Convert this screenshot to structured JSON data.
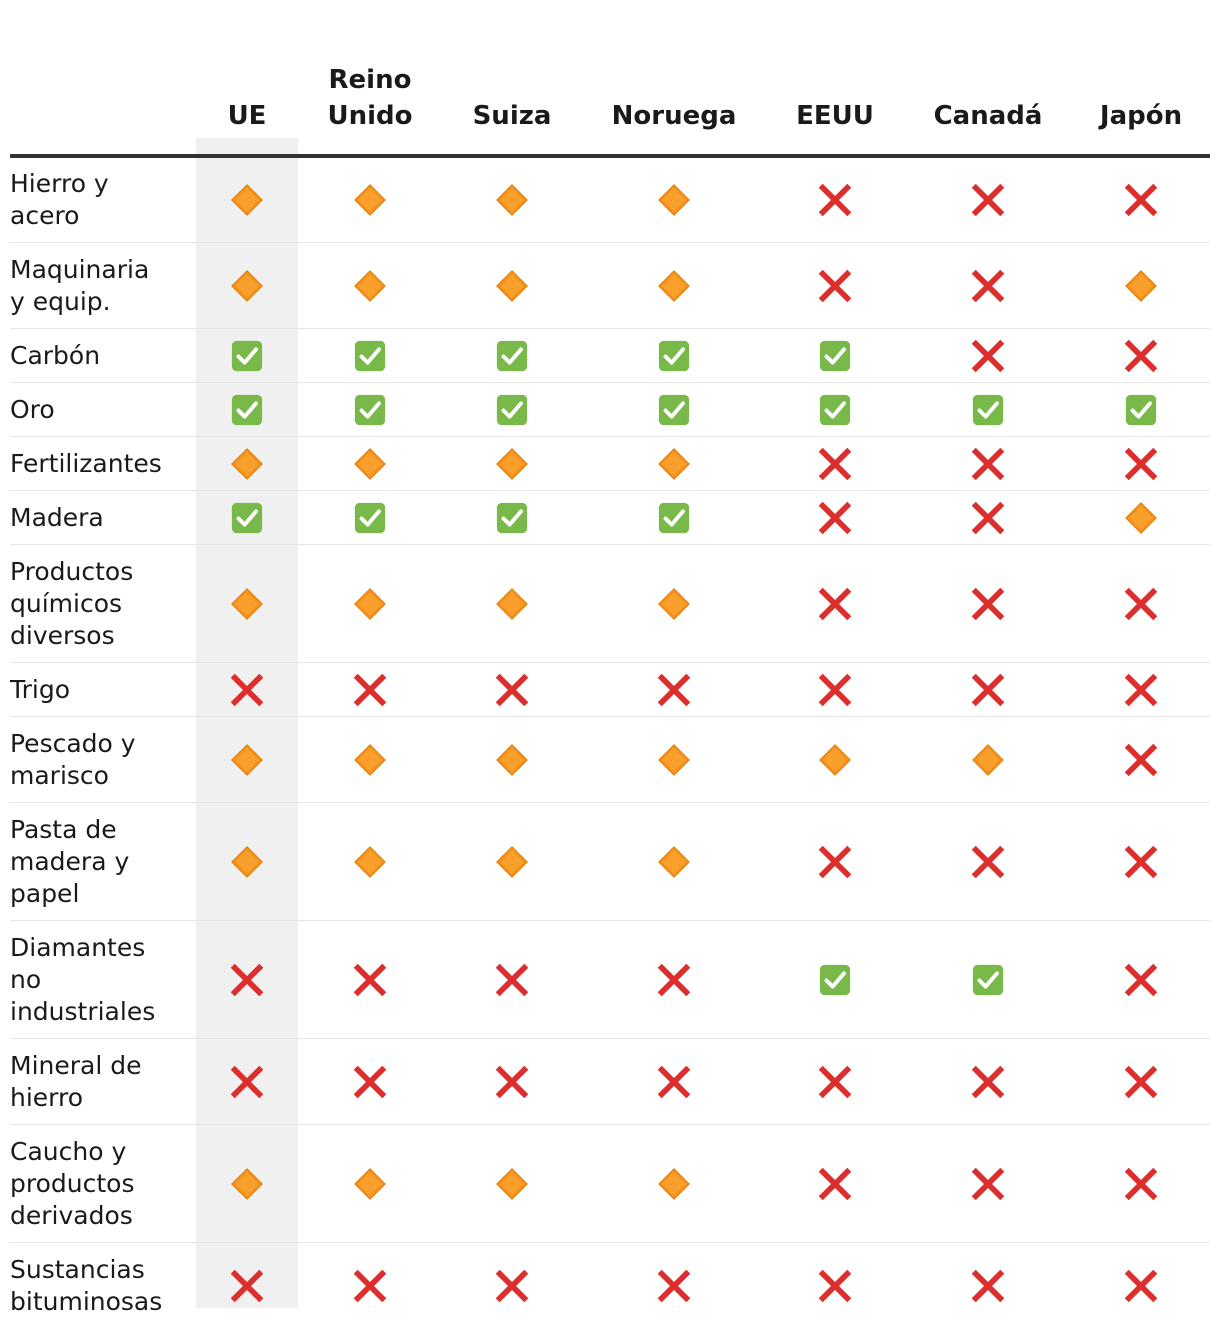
{
  "chart_data": {
    "type": "table",
    "columns": [
      "UE",
      "Reino Unido",
      "Suiza",
      "Noruega",
      "EEUU",
      "Canadá",
      "Japón"
    ],
    "legend_symbols": {
      "check": "green-check-icon",
      "partial": "orange-diamond-icon",
      "cross": "red-cross-icon"
    },
    "colors": {
      "check": "#78b94a",
      "partial": "#f7941d",
      "cross": "#dd2e2e",
      "highlight_column": "#f0f0f0"
    },
    "highlight_column": "UE",
    "rows": [
      {
        "label": "Hierro y acero",
        "lines": [
          "Hierro y",
          "acero"
        ],
        "values": [
          "partial",
          "partial",
          "partial",
          "partial",
          "cross",
          "cross",
          "cross"
        ]
      },
      {
        "label": "Maquinaria y equip.",
        "lines": [
          "Maquinaria",
          "y equip."
        ],
        "values": [
          "partial",
          "partial",
          "partial",
          "partial",
          "cross",
          "cross",
          "partial"
        ]
      },
      {
        "label": "Carbón",
        "lines": [
          "Carbón"
        ],
        "values": [
          "check",
          "check",
          "check",
          "check",
          "check",
          "cross",
          "cross"
        ]
      },
      {
        "label": "Oro",
        "lines": [
          "Oro"
        ],
        "values": [
          "check",
          "check",
          "check",
          "check",
          "check",
          "check",
          "check"
        ]
      },
      {
        "label": "Fertilizantes",
        "lines": [
          "Fertilizantes"
        ],
        "values": [
          "partial",
          "partial",
          "partial",
          "partial",
          "cross",
          "cross",
          "cross"
        ]
      },
      {
        "label": "Madera",
        "lines": [
          "Madera"
        ],
        "values": [
          "check",
          "check",
          "check",
          "check",
          "cross",
          "cross",
          "partial"
        ]
      },
      {
        "label": "Productos químicos diversos",
        "lines": [
          "Productos",
          "químicos",
          "diversos"
        ],
        "values": [
          "partial",
          "partial",
          "partial",
          "partial",
          "cross",
          "cross",
          "cross"
        ]
      },
      {
        "label": "Trigo",
        "lines": [
          "Trigo"
        ],
        "values": [
          "cross",
          "cross",
          "cross",
          "cross",
          "cross",
          "cross",
          "cross"
        ]
      },
      {
        "label": "Pescado y marisco",
        "lines": [
          "Pescado y",
          "marisco"
        ],
        "values": [
          "partial",
          "partial",
          "partial",
          "partial",
          "partial",
          "partial",
          "cross"
        ]
      },
      {
        "label": "Pasta de madera y papel",
        "lines": [
          "Pasta de",
          "madera y",
          "papel"
        ],
        "values": [
          "partial",
          "partial",
          "partial",
          "partial",
          "cross",
          "cross",
          "cross"
        ]
      },
      {
        "label": "Diamantes no industriales",
        "lines": [
          "Diamantes",
          "no",
          "industriales"
        ],
        "values": [
          "cross",
          "cross",
          "cross",
          "cross",
          "check",
          "check",
          "cross"
        ]
      },
      {
        "label": "Mineral de hierro",
        "lines": [
          "Mineral de",
          "hierro"
        ],
        "values": [
          "cross",
          "cross",
          "cross",
          "cross",
          "cross",
          "cross",
          "cross"
        ]
      },
      {
        "label": "Caucho y productos derivados",
        "lines": [
          "Caucho y",
          "productos",
          "derivados"
        ],
        "values": [
          "partial",
          "partial",
          "partial",
          "partial",
          "cross",
          "cross",
          "cross"
        ]
      },
      {
        "label": "Sustancias bituminosas",
        "lines": [
          "Sustancias",
          "bituminosas"
        ],
        "values": [
          "cross",
          "cross",
          "cross",
          "cross",
          "cross",
          "cross",
          "cross"
        ]
      }
    ]
  }
}
